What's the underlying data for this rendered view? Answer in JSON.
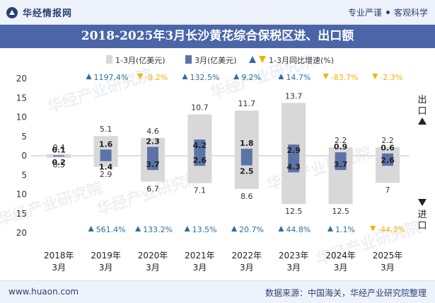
{
  "header": {
    "brand": "华经情报网",
    "slogan_left": "专业严谨",
    "slogan_right": "客观科学"
  },
  "title": "2018-2025年3月长沙黄花综合保税区进、出口额",
  "legend": {
    "items": [
      "1-3月(亿美元)",
      "3月(亿美元)",
      "1-3月同比增速(%)"
    ]
  },
  "side_labels": {
    "export": "出口",
    "import": "进口"
  },
  "watermark": "华经产业研究院",
  "footer": {
    "url": "www.huaon.com",
    "source": "数据来源：中国海关，华经产业研究院整理"
  },
  "colors": {
    "ytd_bar": "#d8d8d8",
    "month_bar": "#5b73a6",
    "growth_up": "#2e6fa1",
    "growth_down": "#f0b400",
    "title_bg": "#4a66a8"
  },
  "chart_data": {
    "type": "bar",
    "categories": [
      "2018年\n3月",
      "2019年\n3月",
      "2020年\n3月",
      "2021年\n3月",
      "2022年\n3月",
      "2023年\n3月",
      "2024年\n3月",
      "2025年\n3月"
    ],
    "y_ticks": [
      "20",
      "15",
      "10",
      "5",
      "0",
      "5",
      "10",
      "15",
      "20"
    ],
    "ylim": [
      -20,
      20
    ],
    "series": [
      {
        "name": "1-3月(亿美元)",
        "role": "export_ytd",
        "values": [
          0.4,
          5.1,
          4.6,
          10.7,
          11.7,
          13.7,
          2.2,
          2.2
        ]
      },
      {
        "name": "3月(亿美元)",
        "role": "export_month",
        "values": [
          0.1,
          1.6,
          2.3,
          4.2,
          1.8,
          2.9,
          0.9,
          0.6
        ]
      },
      {
        "name": "1-3月(亿美元)",
        "role": "import_ytd",
        "values": [
          0.5,
          2.9,
          6.7,
          7.1,
          8.6,
          12.5,
          12.5,
          7
        ]
      },
      {
        "name": "3月(亿美元)",
        "role": "import_month",
        "values": [
          0.2,
          1.4,
          3.7,
          2.6,
          2.5,
          4.3,
          3.7,
          2.6
        ]
      },
      {
        "name": "1-3月同比增速(%)",
        "role": "export_growth",
        "labels": [
          "",
          "1197.4%",
          "-9.2%",
          "132.5%",
          "9.2%",
          "14.7%",
          "-83.7%",
          "-2.3%"
        ],
        "values": [
          null,
          1197.4,
          -9.2,
          132.5,
          9.2,
          14.7,
          -83.7,
          -2.3
        ]
      },
      {
        "name": "1-3月同比增速(%)",
        "role": "import_growth",
        "labels": [
          "",
          "561.4%",
          "133.2%",
          "13.5%",
          "20.7%",
          "44.8%",
          "1.1%",
          "-44.3%"
        ],
        "values": [
          null,
          561.4,
          133.2,
          13.5,
          20.7,
          44.8,
          1.1,
          -44.3
        ]
      }
    ]
  }
}
